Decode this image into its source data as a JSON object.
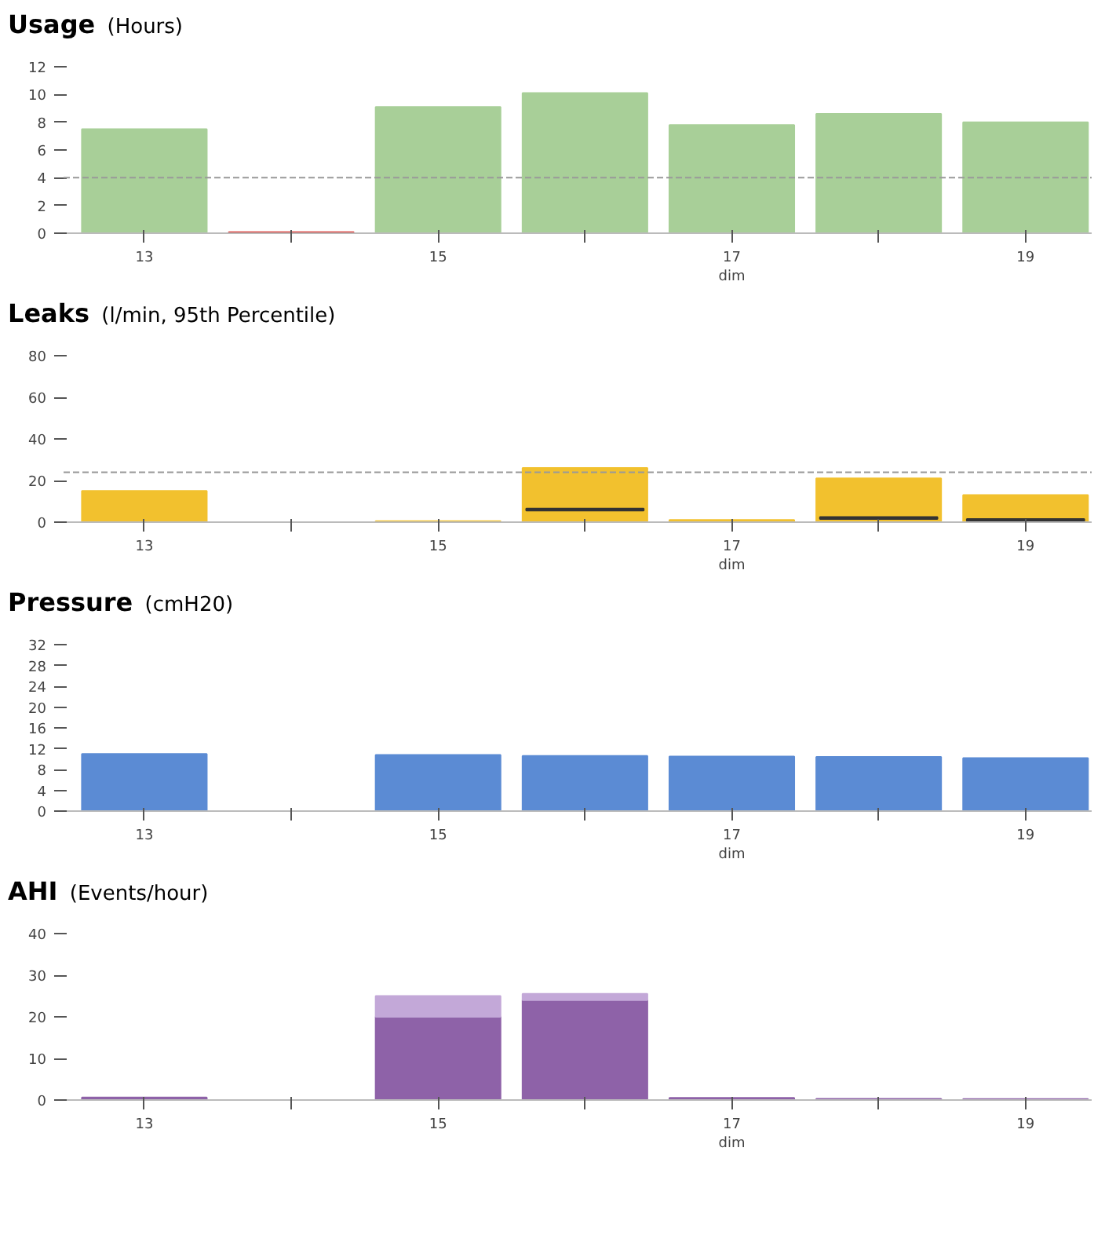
{
  "chart_data": [
    {
      "type": "bar",
      "title": "Usage",
      "subtitle": "(Hours)",
      "x": [
        13,
        14,
        15,
        16,
        17,
        18,
        19
      ],
      "values": [
        7.5,
        0,
        9.1,
        10.1,
        7.8,
        8.6,
        8.0
      ],
      "colors": [
        "#a8cf98",
        "#d9302c",
        "#a8cf98",
        "#a8cf98",
        "#a8cf98",
        "#a8cf98",
        "#a8cf98"
      ],
      "xlim": [
        12.45,
        19.45
      ],
      "xticks": [
        13,
        {
          "value": 14,
          "label": null
        },
        15,
        {
          "value": 16,
          "label": null
        },
        {
          "value": 17,
          "label": "17\ndim"
        },
        {
          "value": 18,
          "label": null
        },
        19
      ],
      "ylim": [
        0,
        12
      ],
      "yticks": [
        0,
        2,
        4,
        6,
        8,
        10,
        12
      ],
      "ref_lines": [
        {
          "axis": "y",
          "value": 4,
          "color": "#999999",
          "line_style": "dashed"
        }
      ],
      "grid": false
    },
    {
      "type": "bar",
      "title": "Leaks",
      "subtitle": "(l/min, 95th Percentile)",
      "x": [
        13,
        14,
        15,
        16,
        17,
        18,
        19
      ],
      "series": [
        {
          "color": "#f2c12e",
          "values": [
            15,
            null,
            0,
            26,
            1,
            21,
            13
          ]
        },
        {
          "color": "#333333",
          "base": [
            null,
            null,
            null,
            6,
            null,
            2,
            1
          ],
          "values": [
            null,
            null,
            null,
            0,
            null,
            0,
            0
          ]
        }
      ],
      "xlim": [
        12.45,
        19.45
      ],
      "xticks": [
        13,
        {
          "value": 14,
          "label": null
        },
        15,
        {
          "value": 16,
          "label": null
        },
        {
          "value": 17,
          "label": "17\ndim"
        },
        {
          "value": 18,
          "label": null
        },
        19
      ],
      "ylim": [
        0,
        80
      ],
      "yticks": [
        0,
        20,
        40,
        60,
        80
      ],
      "ref_lines": [
        {
          "axis": "y",
          "value": 24,
          "color": "#999999",
          "line_style": "dashed"
        }
      ],
      "grid": false
    },
    {
      "type": "bar",
      "title": "Pressure",
      "subtitle": "(cmH20)",
      "x": [
        13,
        14,
        15,
        16,
        17,
        18,
        19
      ],
      "values": [
        11,
        null,
        10.8,
        10.6,
        10.5,
        10.4,
        10.2
      ],
      "color": "#5b8bd4",
      "xlim": [
        12.45,
        19.45
      ],
      "xticks": [
        13,
        {
          "value": 14,
          "label": null
        },
        15,
        {
          "value": 16,
          "label": null
        },
        {
          "value": 17,
          "label": "17\ndim"
        },
        {
          "value": 18,
          "label": null
        },
        19
      ],
      "ylim": [
        0,
        32
      ],
      "yticks": [
        0,
        4,
        8,
        12,
        16,
        20,
        24,
        28,
        32
      ],
      "grid": false
    },
    {
      "type": "bar",
      "title": "AHI",
      "subtitle": "(Events/hour)",
      "x": [
        13,
        14,
        15,
        16,
        17,
        18,
        19
      ],
      "stacked": true,
      "series": [
        {
          "color": "#8e62a8",
          "values": [
            0.6,
            null,
            20,
            24,
            0.5,
            0.3,
            0
          ]
        },
        {
          "color": "#c3a8d8",
          "values": [
            null,
            null,
            5,
            1.5,
            null,
            null,
            null
          ]
        }
      ],
      "xlim": [
        12.45,
        19.45
      ],
      "xticks": [
        13,
        {
          "value": 14,
          "label": null
        },
        15,
        {
          "value": 16,
          "label": null
        },
        {
          "value": 17,
          "label": "17\ndim"
        },
        {
          "value": 18,
          "label": null
        },
        19
      ],
      "ylim": [
        0,
        40
      ],
      "yticks": [
        0,
        10,
        20,
        30,
        40
      ],
      "grid": false
    }
  ]
}
